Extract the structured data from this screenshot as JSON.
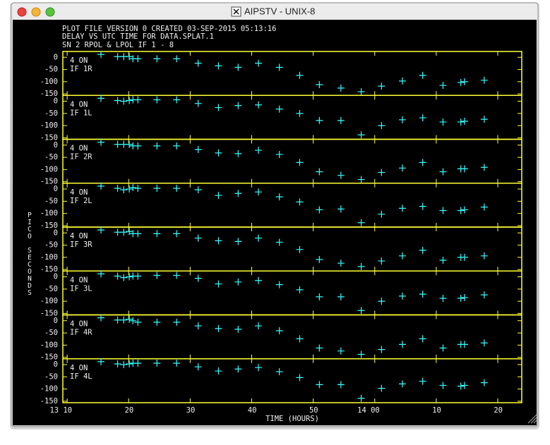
{
  "window_title": "AIPSTV - UNIX-8",
  "header": [
    "PLOT FILE VERSION 0  CREATED 03-SEP-2015 05:13:16",
    "DELAY VS UTC TIME FOR DATA.SPLAT.1",
    "SN 2  RPOL & LPOL  IF 1 - 8"
  ],
  "ylabel": "PICO SECONDS",
  "xlabel": "TIME (HOURS)",
  "chart_data": [
    {
      "type": "scatter",
      "label": "4 ON",
      "series_name": "IF 1R",
      "color": "#33ffff",
      "x": [
        15.5,
        18.2,
        19.2,
        20.1,
        20.7,
        21.5,
        24.6,
        27.8,
        31.3,
        34.6,
        37.8,
        41.1,
        44.5,
        47.8,
        51.0,
        54.5,
        57.8,
        61.1,
        64.5,
        67.8,
        71.1,
        74.0,
        74.6,
        77.8
      ],
      "values": [
        12,
        3,
        3,
        3,
        -6,
        -6,
        -6,
        -6,
        -24,
        -35,
        -41,
        -24,
        -41,
        -74,
        -112,
        -126,
        -141,
        -118,
        -97,
        -74,
        -115,
        -103,
        -100,
        -94
      ],
      "xlim": [
        9.3,
        83.9
      ],
      "xticks": [
        10,
        20,
        30,
        40,
        50,
        60,
        70,
        80
      ],
      "ylim": [
        -156,
        24
      ],
      "yticks": [
        0,
        -50,
        -100,
        -150
      ]
    },
    {
      "type": "scatter",
      "label": "4 ON",
      "series_name": "IF 1L",
      "color": "#33ffff",
      "x": [
        15.5,
        18.2,
        19.2,
        20.1,
        20.7,
        21.5,
        24.6,
        27.8,
        31.3,
        34.6,
        37.8,
        41.1,
        44.5,
        47.8,
        51.0,
        54.5,
        57.8,
        61.1,
        64.5,
        67.8,
        71.1,
        74.0,
        74.6,
        77.8
      ],
      "values": [
        12,
        3,
        0,
        3,
        6,
        6,
        6,
        6,
        -9,
        -26,
        -18,
        -15,
        -32,
        -50,
        -79,
        -79,
        -138,
        -100,
        -76,
        -68,
        -85,
        -85,
        -82,
        -74
      ],
      "xlim": [
        9.3,
        83.9
      ],
      "xticks": [
        10,
        20,
        30,
        40,
        50,
        60,
        70,
        80
      ],
      "ylim": [
        -156,
        24
      ],
      "yticks": [
        0,
        -50,
        -100,
        -150
      ]
    },
    {
      "type": "scatter",
      "label": "4 ON",
      "series_name": "IF 2R",
      "color": "#33ffff",
      "x": [
        15.5,
        18.2,
        19.2,
        20.1,
        20.7,
        21.5,
        24.6,
        27.8,
        31.3,
        34.6,
        37.8,
        41.1,
        44.5,
        47.8,
        51.0,
        54.5,
        57.8,
        61.1,
        64.5,
        67.8,
        71.1,
        74.0,
        74.6,
        77.8
      ],
      "values": [
        12,
        3,
        3,
        3,
        -3,
        -3,
        -3,
        -3,
        -18,
        -32,
        -35,
        -21,
        -38,
        -71,
        -109,
        -124,
        -141,
        -112,
        -94,
        -71,
        -109,
        -97,
        -97,
        -91
      ],
      "xlim": [
        9.3,
        83.9
      ],
      "xticks": [
        10,
        20,
        30,
        40,
        50,
        60,
        70,
        80
      ],
      "ylim": [
        -156,
        24
      ],
      "yticks": [
        0,
        -50,
        -100,
        -150
      ]
    },
    {
      "type": "scatter",
      "label": "4 ON",
      "series_name": "IF 2L",
      "color": "#33ffff",
      "x": [
        15.5,
        18.2,
        19.2,
        20.1,
        20.7,
        21.5,
        24.6,
        27.8,
        31.3,
        34.6,
        37.8,
        41.1,
        44.5,
        47.8,
        51.0,
        54.5,
        57.8,
        61.1,
        64.5,
        67.8,
        71.1,
        74.0,
        74.6,
        77.8
      ],
      "values": [
        12,
        3,
        -3,
        0,
        6,
        3,
        3,
        3,
        -3,
        -26,
        -18,
        -12,
        -32,
        -53,
        -85,
        -82,
        -138,
        -103,
        -79,
        -71,
        -88,
        -88,
        -85,
        -74
      ],
      "xlim": [
        9.3,
        83.9
      ],
      "xticks": [
        10,
        20,
        30,
        40,
        50,
        60,
        70,
        80
      ],
      "ylim": [
        -156,
        24
      ],
      "yticks": [
        0,
        -50,
        -100,
        -150
      ]
    },
    {
      "type": "scatter",
      "label": "4 ON",
      "series_name": "IF 3R",
      "color": "#33ffff",
      "x": [
        15.5,
        18.2,
        19.2,
        20.1,
        20.7,
        21.5,
        24.6,
        27.8,
        31.3,
        34.6,
        37.8,
        41.1,
        44.5,
        47.8,
        51.0,
        54.5,
        57.8,
        61.1,
        64.5,
        67.8,
        71.1,
        74.0,
        74.6,
        77.8
      ],
      "values": [
        12,
        3,
        3,
        6,
        -3,
        -3,
        -3,
        -3,
        -21,
        -32,
        -35,
        -21,
        -38,
        -68,
        -109,
        -124,
        -138,
        -115,
        -94,
        -71,
        -112,
        -100,
        -100,
        -94
      ],
      "xlim": [
        9.3,
        83.9
      ],
      "xticks": [
        10,
        20,
        30,
        40,
        50,
        60,
        70,
        80
      ],
      "ylim": [
        -156,
        24
      ],
      "yticks": [
        0,
        -50,
        -100,
        -150
      ]
    },
    {
      "type": "scatter",
      "label": "4 ON",
      "series_name": "IF 3L",
      "color": "#33ffff",
      "x": [
        15.5,
        18.2,
        19.2,
        20.1,
        20.7,
        21.5,
        24.6,
        27.8,
        31.3,
        34.6,
        37.8,
        41.1,
        44.5,
        47.8,
        51.0,
        54.5,
        57.8,
        61.1,
        64.5,
        67.8,
        71.1,
        74.0,
        74.6,
        77.8
      ],
      "values": [
        12,
        3,
        -3,
        0,
        3,
        3,
        6,
        6,
        -6,
        -29,
        -21,
        -15,
        -32,
        -53,
        -82,
        -82,
        -138,
        -100,
        -79,
        -71,
        -88,
        -88,
        -85,
        -74
      ],
      "xlim": [
        9.3,
        83.9
      ],
      "xticks": [
        10,
        20,
        30,
        40,
        50,
        60,
        70,
        80
      ],
      "ylim": [
        -156,
        24
      ],
      "yticks": [
        0,
        -50,
        -100,
        -150
      ]
    },
    {
      "type": "scatter",
      "label": "4 ON",
      "series_name": "IF 4R",
      "color": "#33ffff",
      "x": [
        15.5,
        18.2,
        19.2,
        20.1,
        20.7,
        21.5,
        24.6,
        27.8,
        31.3,
        34.6,
        37.8,
        41.1,
        44.5,
        47.8,
        51.0,
        54.5,
        57.8,
        61.1,
        64.5,
        67.8,
        71.1,
        74.0,
        74.6,
        77.8
      ],
      "values": [
        12,
        3,
        3,
        6,
        0,
        -6,
        -6,
        -6,
        -21,
        -32,
        -35,
        -21,
        -41,
        -74,
        -112,
        -124,
        -138,
        -118,
        -97,
        -74,
        -112,
        -97,
        -97,
        -91
      ],
      "xlim": [
        9.3,
        83.9
      ],
      "xticks": [
        10,
        20,
        30,
        40,
        50,
        60,
        70,
        80
      ],
      "ylim": [
        -156,
        24
      ],
      "yticks": [
        0,
        -50,
        -100,
        -150
      ]
    },
    {
      "type": "scatter",
      "label": "4 ON",
      "series_name": "IF 4L",
      "color": "#33ffff",
      "x": [
        15.5,
        18.2,
        19.2,
        20.1,
        20.7,
        21.5,
        24.6,
        27.8,
        31.3,
        34.6,
        37.8,
        41.1,
        44.5,
        47.8,
        51.0,
        54.5,
        57.8,
        61.1,
        64.5,
        67.8,
        71.1,
        74.0,
        74.6,
        77.8
      ],
      "values": [
        12,
        3,
        0,
        3,
        6,
        6,
        6,
        6,
        -9,
        -26,
        -18,
        -12,
        -29,
        -53,
        -82,
        -82,
        -138,
        -97,
        -79,
        -68,
        -85,
        -88,
        -85,
        -74
      ],
      "xlim": [
        9.3,
        83.9
      ],
      "xticks": [
        {
          "value": 10,
          "label": "13 10"
        },
        20,
        30,
        40,
        50,
        {
          "value": 60,
          "label": "14 00"
        },
        {
          "value": 70,
          "label": "10"
        },
        {
          "value": 80,
          "label": "20"
        }
      ],
      "ylim": [
        -156,
        24
      ],
      "yticks": [
        0,
        -50,
        -100,
        -150
      ]
    }
  ]
}
